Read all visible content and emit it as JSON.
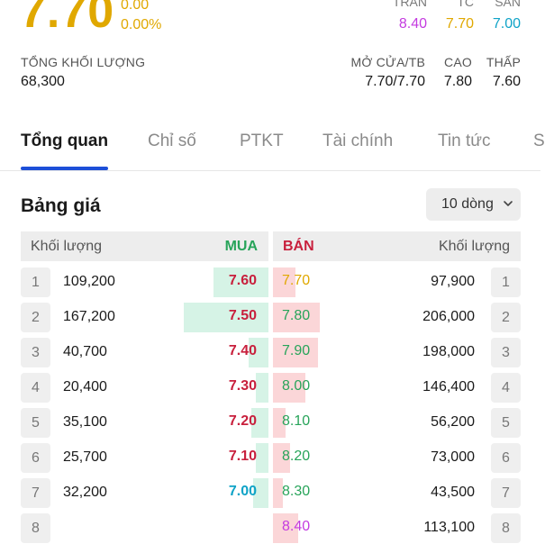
{
  "quote": {
    "price": "7.70",
    "change": "0.00",
    "change_pct": "0.00%",
    "ceiling_label": "TRẦN",
    "ceiling": "8.40",
    "ref_label": "TC",
    "ref": "7.70",
    "floor_label": "SÀN",
    "floor": "7.00"
  },
  "stats": {
    "volume_label": "TỔNG KHỐI LƯỢNG",
    "volume": "68,300",
    "open_avg_label": "MỞ CỬA/TB",
    "open_avg": "7.70/7.70",
    "high_label": "CAO",
    "high": "7.80",
    "low_label": "THẤP",
    "low": "7.60"
  },
  "tabs": [
    {
      "label": "Tổng quan",
      "active": true
    },
    {
      "label": "Chỉ số"
    },
    {
      "label": "PTKT"
    },
    {
      "label": "Tài chính"
    },
    {
      "label": "Tin tức"
    },
    {
      "label": "S"
    }
  ],
  "order_book": {
    "title": "Bảng giá",
    "rows_select": "10 dòng",
    "header": {
      "buy_volume": "Khối lượng",
      "buy": "MUA",
      "sell": "BÁN",
      "sell_volume": "Khối lượng"
    },
    "rows": [
      {
        "idx": "1",
        "buy_vol": "109,200",
        "buy_price": "7.60",
        "buy_color": "red",
        "buy_fill": 0.22,
        "sell_price": "7.70",
        "sell_color": "yellow",
        "sell_fill": 0.09,
        "sell_vol": "97,900"
      },
      {
        "idx": "2",
        "buy_vol": "167,200",
        "buy_price": "7.50",
        "buy_color": "red",
        "buy_fill": 0.34,
        "sell_price": "7.80",
        "sell_color": "green",
        "sell_fill": 0.19,
        "sell_vol": "206,000"
      },
      {
        "idx": "3",
        "buy_vol": "40,700",
        "buy_price": "7.40",
        "buy_color": "red",
        "buy_fill": 0.08,
        "sell_price": "7.90",
        "sell_color": "green",
        "sell_fill": 0.18,
        "sell_vol": "198,000"
      },
      {
        "idx": "4",
        "buy_vol": "20,400",
        "buy_price": "7.30",
        "buy_color": "red",
        "buy_fill": 0.05,
        "sell_price": "8.00",
        "sell_color": "green",
        "sell_fill": 0.13,
        "sell_vol": "146,400"
      },
      {
        "idx": "5",
        "buy_vol": "35,100",
        "buy_price": "7.20",
        "buy_color": "red",
        "buy_fill": 0.07,
        "sell_price": "8.10",
        "sell_color": "green",
        "sell_fill": 0.05,
        "sell_vol": "56,200"
      },
      {
        "idx": "6",
        "buy_vol": "25,700",
        "buy_price": "7.10",
        "buy_color": "red",
        "buy_fill": 0.05,
        "sell_price": "8.20",
        "sell_color": "green",
        "sell_fill": 0.07,
        "sell_vol": "73,000"
      },
      {
        "idx": "7",
        "buy_vol": "32,200",
        "buy_price": "7.00",
        "buy_color": "cyan",
        "buy_fill": 0.06,
        "sell_price": "8.30",
        "sell_color": "green",
        "sell_fill": 0.04,
        "sell_vol": "43,500"
      },
      {
        "idx": "8",
        "buy_vol": "",
        "buy_price": "",
        "buy_color": "red",
        "buy_fill": 0,
        "sell_price": "8.40",
        "sell_color": "purple",
        "sell_fill": 0.1,
        "sell_vol": "113,100"
      }
    ]
  }
}
